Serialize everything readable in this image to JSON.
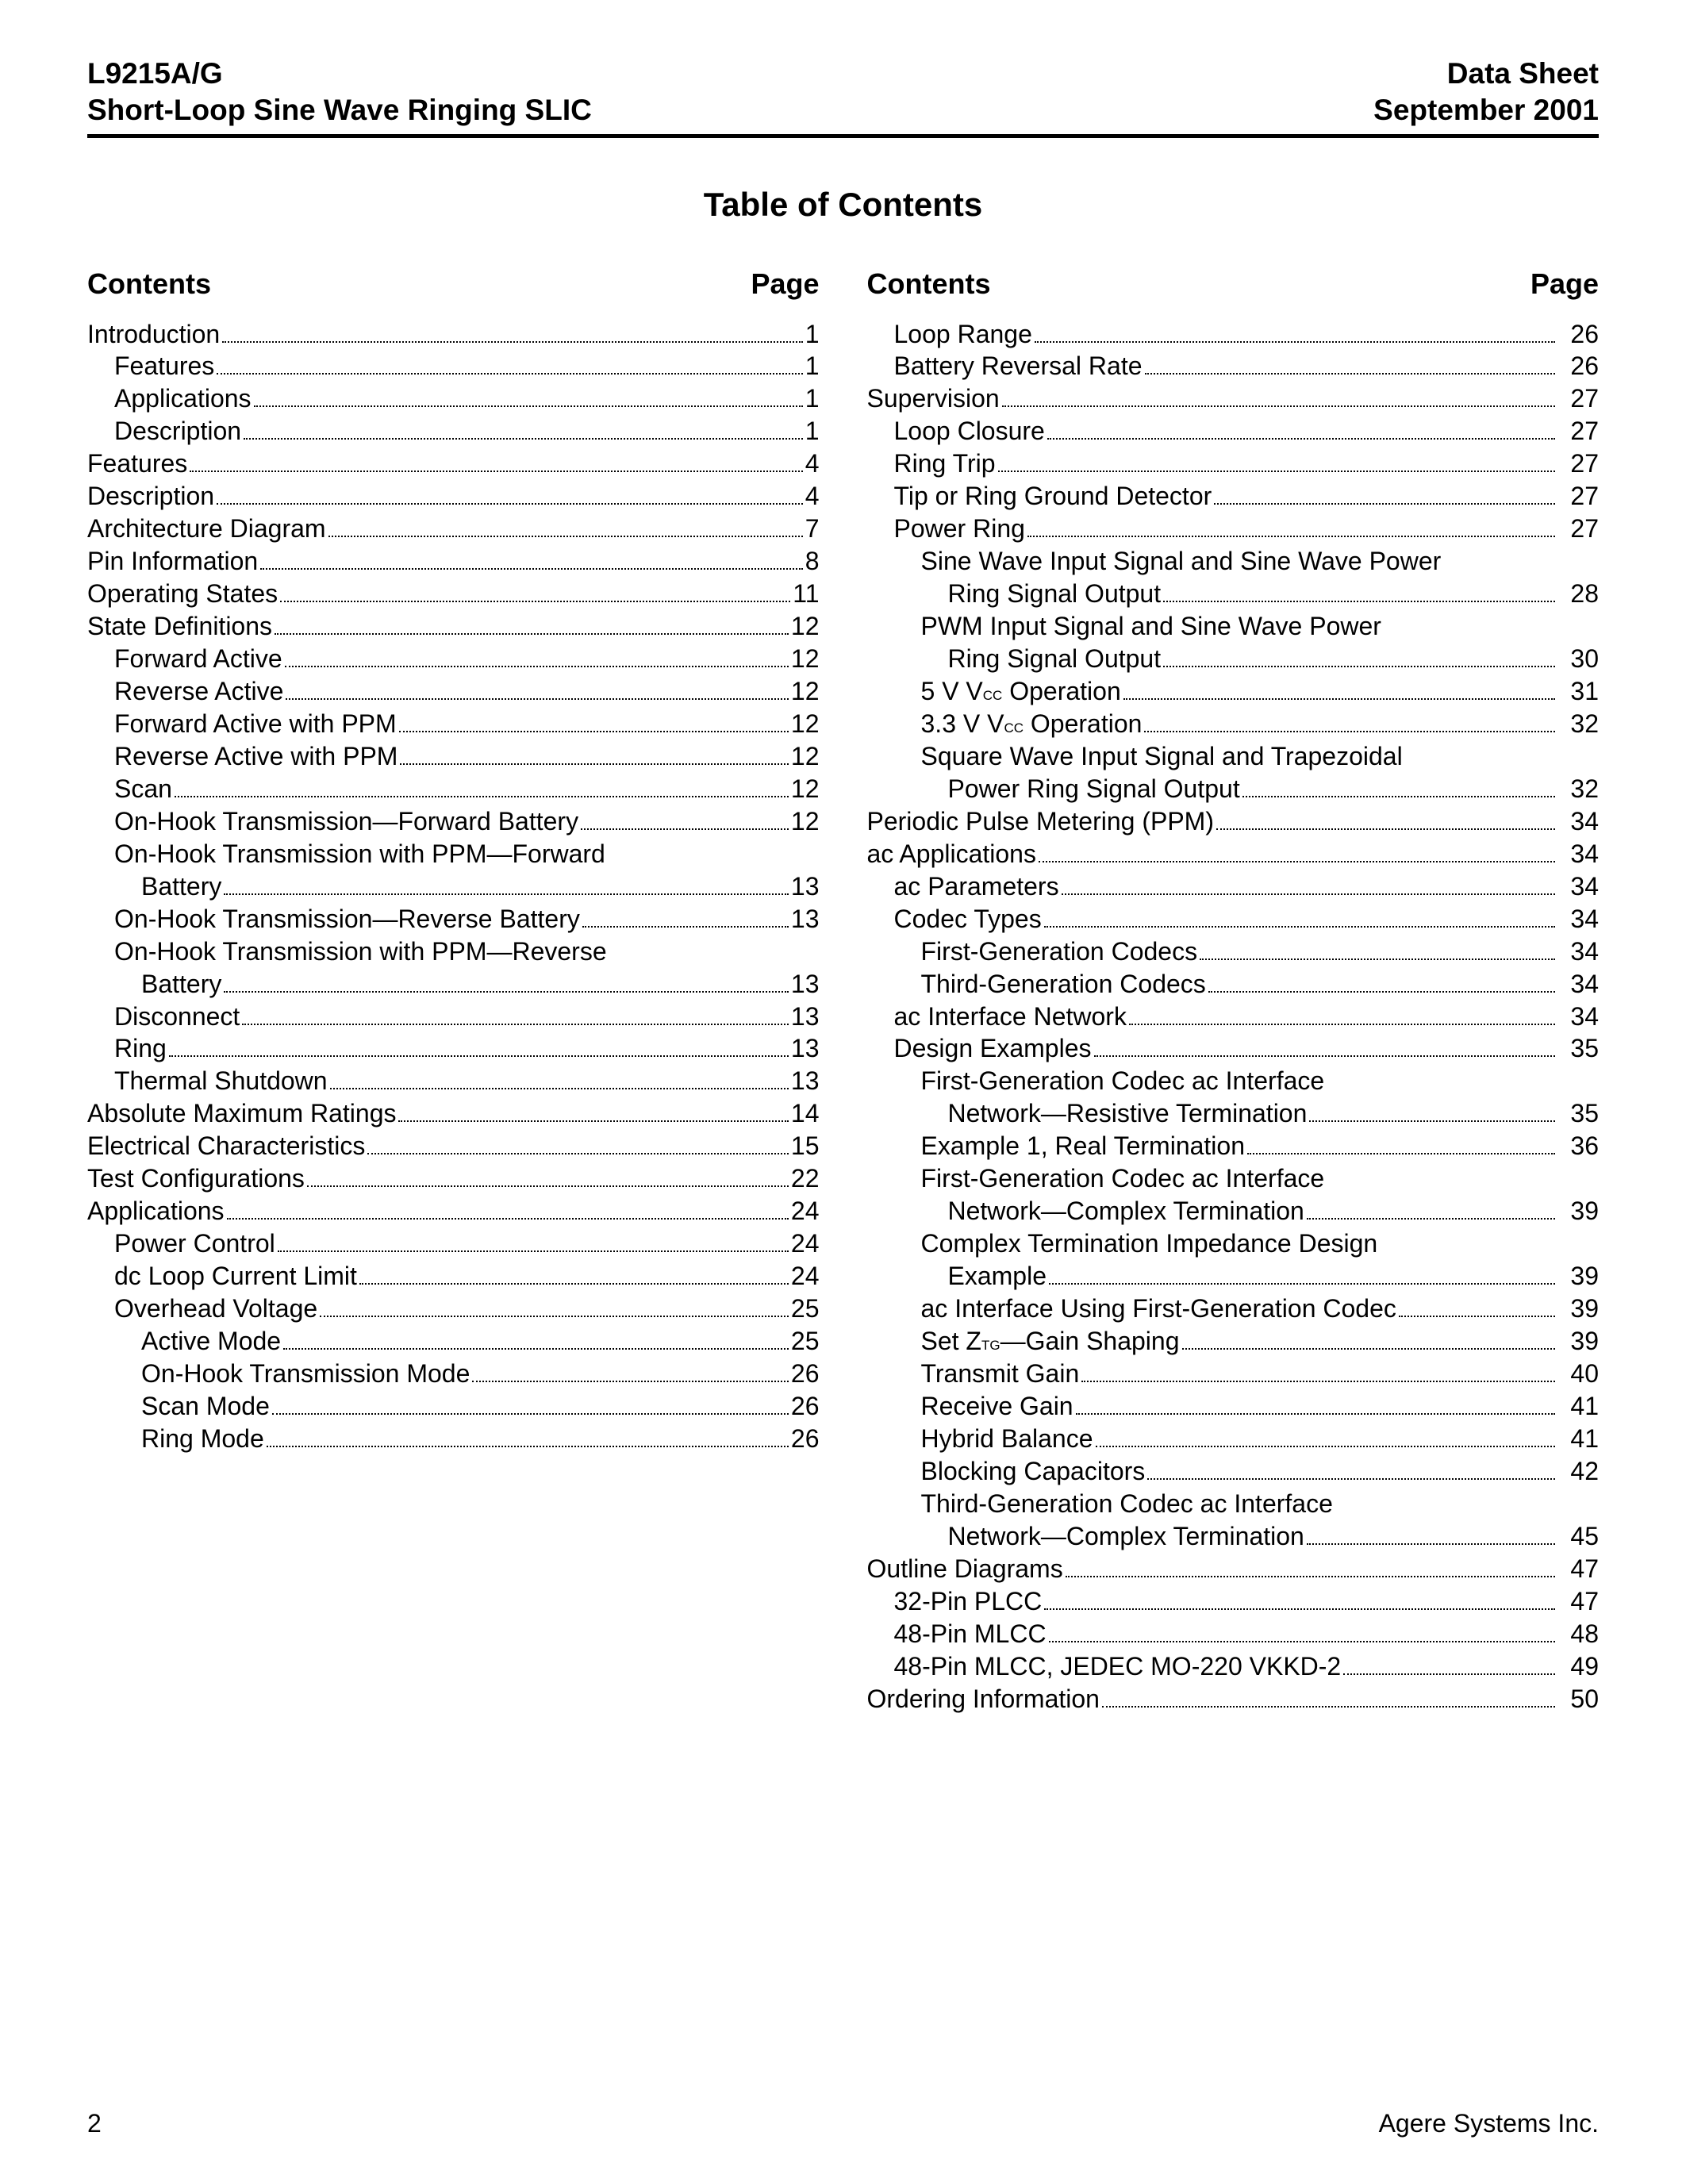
{
  "header": {
    "code": "L9215A/G",
    "subtitle": "Short-Loop Sine Wave Ringing SLIC",
    "docType": "Data Sheet",
    "date": "September 2001"
  },
  "tocTitle": "Table of Contents",
  "colHeads": {
    "contents": "Contents",
    "page": "Page"
  },
  "footer": {
    "pageNum": "2",
    "company": "Agere Systems Inc."
  },
  "left": [
    {
      "label": "Introduction",
      "page": "1",
      "indent": 0
    },
    {
      "label": "Features",
      "page": "1",
      "indent": 1
    },
    {
      "label": "Applications",
      "page": "1",
      "indent": 1
    },
    {
      "label": "Description",
      "page": "1",
      "indent": 1
    },
    {
      "label": "Features",
      "page": "4",
      "indent": 0
    },
    {
      "label": "Description",
      "page": "4",
      "indent": 0
    },
    {
      "label": "Architecture Diagram",
      "page": "7",
      "indent": 0
    },
    {
      "label": "Pin Information",
      "page": "8",
      "indent": 0
    },
    {
      "label": "Operating States",
      "page": "11",
      "indent": 0
    },
    {
      "label": "State Definitions",
      "page": "12",
      "indent": 0
    },
    {
      "label": "Forward Active",
      "page": "12",
      "indent": 1
    },
    {
      "label": "Reverse Active",
      "page": "12",
      "indent": 1
    },
    {
      "label": "Forward Active with PPM",
      "page": "12",
      "indent": 1
    },
    {
      "label": "Reverse Active with PPM",
      "page": "12",
      "indent": 1
    },
    {
      "label": "Scan",
      "page": "12",
      "indent": 1
    },
    {
      "label": "On-Hook Transmission—Forward Battery",
      "page": "12",
      "indent": 1
    },
    {
      "label": "On-Hook Transmission with PPM—Forward",
      "indent": 1,
      "wrap": true
    },
    {
      "label": "Battery",
      "page": "13",
      "indent": 2
    },
    {
      "label": "On-Hook Transmission—Reverse Battery",
      "page": "13",
      "indent": 1
    },
    {
      "label": "On-Hook Transmission with PPM—Reverse",
      "indent": 1,
      "wrap": true
    },
    {
      "label": "Battery",
      "page": "13",
      "indent": 2
    },
    {
      "label": "Disconnect",
      "page": "13",
      "indent": 1
    },
    {
      "label": "Ring",
      "page": "13",
      "indent": 1
    },
    {
      "label": "Thermal Shutdown",
      "page": "13",
      "indent": 1
    },
    {
      "label": "Absolute Maximum Ratings",
      "page": "14",
      "indent": 0
    },
    {
      "label": "Electrical Characteristics",
      "page": "15",
      "indent": 0
    },
    {
      "label": "Test Configurations",
      "page": "22",
      "indent": 0
    },
    {
      "label": "Applications",
      "page": "24",
      "indent": 0
    },
    {
      "label": "Power Control",
      "page": "24",
      "indent": 1
    },
    {
      "label": "dc Loop Current Limit",
      "page": "24",
      "indent": 1
    },
    {
      "label": "Overhead Voltage",
      "page": "25",
      "indent": 1
    },
    {
      "label": "Active Mode",
      "page": "25",
      "indent": 2
    },
    {
      "label": "On-Hook Transmission Mode",
      "page": "26",
      "indent": 2
    },
    {
      "label": "Scan Mode",
      "page": "26",
      "indent": 2
    },
    {
      "label": "Ring Mode",
      "page": "26",
      "indent": 2
    }
  ],
  "right": [
    {
      "label": "Loop Range",
      "page": "26",
      "indent": 1,
      "pad": true
    },
    {
      "label": "Battery Reversal Rate",
      "page": "26",
      "indent": 1,
      "pad": true
    },
    {
      "label": "Supervision",
      "page": "27",
      "indent": 0,
      "pad": true
    },
    {
      "label": "Loop Closure",
      "page": "27",
      "indent": 1,
      "pad": true
    },
    {
      "label": "Ring Trip",
      "page": "27",
      "indent": 1,
      "pad": true
    },
    {
      "label": "Tip or Ring Ground Detector",
      "page": "27",
      "indent": 1,
      "pad": true
    },
    {
      "label": "Power Ring",
      "page": "27",
      "indent": 1,
      "pad": true
    },
    {
      "label": "Sine Wave Input Signal and Sine Wave Power",
      "indent": 2,
      "wrap": true
    },
    {
      "label": "Ring Signal Output",
      "page": "28",
      "indent": 3,
      "pad": true
    },
    {
      "label": "PWM Input Signal and Sine Wave Power",
      "indent": 2,
      "wrap": true
    },
    {
      "label": "Ring Signal Output",
      "page": "30",
      "indent": 3,
      "pad": true
    },
    {
      "label": "5 V V__CC__ Operation",
      "page": "31",
      "indent": 2,
      "pad": true
    },
    {
      "label": "3.3 V V__CC__ Operation",
      "page": "32",
      "indent": 2,
      "pad": true
    },
    {
      "label": "Square Wave Input Signal and Trapezoidal",
      "indent": 2,
      "wrap": true
    },
    {
      "label": "Power Ring Signal Output",
      "page": "32",
      "indent": 3,
      "pad": true
    },
    {
      "label": "Periodic Pulse Metering (PPM)",
      "page": "34",
      "indent": 0,
      "pad": true
    },
    {
      "label": "ac Applications",
      "page": "34",
      "indent": 0,
      "pad": true
    },
    {
      "label": "ac Parameters",
      "page": "34",
      "indent": 1,
      "pad": true
    },
    {
      "label": "Codec Types",
      "page": "34",
      "indent": 1,
      "pad": true
    },
    {
      "label": "First-Generation Codecs",
      "page": "34",
      "indent": 2,
      "pad": true
    },
    {
      "label": "Third-Generation Codecs",
      "page": "34",
      "indent": 2,
      "pad": true
    },
    {
      "label": "ac Interface Network",
      "page": "34",
      "indent": 1,
      "pad": true
    },
    {
      "label": "Design Examples",
      "page": "35",
      "indent": 1,
      "pad": true
    },
    {
      "label": "First-Generation Codec ac Interface",
      "indent": 2,
      "wrap": true
    },
    {
      "label": "Network—Resistive Termination",
      "page": "35",
      "indent": 3,
      "pad": true
    },
    {
      "label": "Example 1, Real Termination",
      "page": "36",
      "indent": 2,
      "pad": true
    },
    {
      "label": "First-Generation Codec ac Interface",
      "indent": 2,
      "wrap": true
    },
    {
      "label": "Network—Complex Termination",
      "page": "39",
      "indent": 3,
      "pad": true
    },
    {
      "label": "Complex Termination Impedance Design",
      "indent": 2,
      "wrap": true
    },
    {
      "label": "Example",
      "page": "39",
      "indent": 3,
      "pad": true
    },
    {
      "label": "ac Interface Using First-Generation Codec",
      "page": "39",
      "indent": 2,
      "pad": true
    },
    {
      "label": "Set Z__TG__—Gain Shaping",
      "page": "39",
      "indent": 2,
      "pad": true
    },
    {
      "label": "Transmit Gain",
      "page": "40",
      "indent": 2,
      "pad": true
    },
    {
      "label": "Receive Gain",
      "page": "41",
      "indent": 2,
      "pad": true
    },
    {
      "label": "Hybrid Balance",
      "page": "41",
      "indent": 2,
      "pad": true
    },
    {
      "label": "Blocking Capacitors",
      "page": "42",
      "indent": 2,
      "pad": true
    },
    {
      "label": "Third-Generation Codec ac Interface",
      "indent": 2,
      "wrap": true
    },
    {
      "label": "Network—Complex Termination",
      "page": "45",
      "indent": 3,
      "pad": true
    },
    {
      "label": "Outline Diagrams",
      "page": "47",
      "indent": 0,
      "pad": true
    },
    {
      "label": "32-Pin PLCC",
      "page": "47",
      "indent": 1,
      "pad": true
    },
    {
      "label": "48-Pin MLCC",
      "page": "48",
      "indent": 1,
      "pad": true
    },
    {
      "label": "48-Pin MLCC, JEDEC MO-220 VKKD-2",
      "page": "49",
      "indent": 1,
      "pad": true
    },
    {
      "label": "Ordering Information",
      "page": "50",
      "indent": 0,
      "pad": true
    }
  ]
}
